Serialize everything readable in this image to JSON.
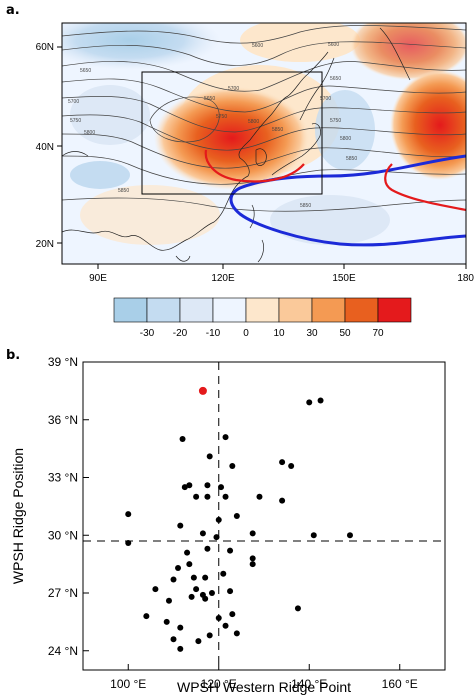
{
  "panel_a": {
    "label": "a.",
    "lat_ticks": [
      "60N",
      "40N",
      "20N"
    ],
    "lon_ticks": [
      "90E",
      "120E",
      "150E",
      "180"
    ],
    "contour_labels": [
      "5600",
      "5650",
      "5700",
      "5750",
      "5800",
      "5850",
      "5650",
      "5700",
      "5750",
      "5800",
      "5850",
      "5600",
      "5650",
      "5700",
      "5750",
      "5800",
      "5850",
      "5850"
    ],
    "colorbar": {
      "labels": [
        "-30",
        "-20",
        "-10",
        "0",
        "10",
        "30",
        "50",
        "70"
      ],
      "colors": [
        "#a9cfe8",
        "#c4dcf1",
        "#dde8f6",
        "#eef5ff",
        "#fde7cc",
        "#fac99a",
        "#f49a53",
        "#e8601f",
        "#e41a1c"
      ]
    },
    "colors": {
      "ridge_blue": "#1c2ad8",
      "ridge_red": "#e41a1c",
      "land_outline": "#222222"
    }
  },
  "chart_data": {
    "type": "scatter",
    "label": "b.",
    "xlabel": "WPSH Western Ridge Point",
    "ylabel": "WPSH Ridge Position",
    "xlim": [
      90,
      170
    ],
    "ylim": [
      23,
      39
    ],
    "x_tick_labels": [
      "100 °E",
      "120 °E",
      "140 °E",
      "160 °E"
    ],
    "x_ticks": [
      100,
      120,
      140,
      160
    ],
    "y_tick_labels": [
      "24 °N",
      "27 °N",
      "30 °N",
      "33 °N",
      "36 °N",
      "39 °N"
    ],
    "y_ticks": [
      24,
      27,
      30,
      33,
      36,
      39
    ],
    "reference_lines": {
      "x": 120,
      "y": 29.7
    },
    "highlight": {
      "x": 116.5,
      "y": 37.5,
      "color": "#e41a1c"
    },
    "point_color": "#000000",
    "points": [
      [
        112,
        35.0
      ],
      [
        121.5,
        35.1
      ],
      [
        118.0,
        34.1
      ],
      [
        123.0,
        33.6
      ],
      [
        113.5,
        32.6
      ],
      [
        112.5,
        32.5
      ],
      [
        117.5,
        32.6
      ],
      [
        120.5,
        32.5
      ],
      [
        115.0,
        32.0
      ],
      [
        117.5,
        32.0
      ],
      [
        121.5,
        32.0
      ],
      [
        129.0,
        32.0
      ],
      [
        134.0,
        33.8
      ],
      [
        136.0,
        33.6
      ],
      [
        134.0,
        31.8
      ],
      [
        140.0,
        36.9
      ],
      [
        142.5,
        37.0
      ],
      [
        100.0,
        31.1
      ],
      [
        124.0,
        31.0
      ],
      [
        120.0,
        30.8
      ],
      [
        111.5,
        30.5
      ],
      [
        116.5,
        30.1
      ],
      [
        127.5,
        30.1
      ],
      [
        141.0,
        30.0
      ],
      [
        149.0,
        30.0
      ],
      [
        100.0,
        29.6
      ],
      [
        119.5,
        29.9
      ],
      [
        113.0,
        29.1
      ],
      [
        117.5,
        29.3
      ],
      [
        122.5,
        29.2
      ],
      [
        127.5,
        28.8
      ],
      [
        127.5,
        28.5
      ],
      [
        111.0,
        28.3
      ],
      [
        113.5,
        28.5
      ],
      [
        121.0,
        28.0
      ],
      [
        110.0,
        27.7
      ],
      [
        114.5,
        27.8
      ],
      [
        117.0,
        27.8
      ],
      [
        115.0,
        27.2
      ],
      [
        118.5,
        27.0
      ],
      [
        122.5,
        27.1
      ],
      [
        106.0,
        27.2
      ],
      [
        109.0,
        26.6
      ],
      [
        116.5,
        26.9
      ],
      [
        114.0,
        26.8
      ],
      [
        117.0,
        26.7
      ],
      [
        104.0,
        25.8
      ],
      [
        120.0,
        25.7
      ],
      [
        123.0,
        25.9
      ],
      [
        137.5,
        26.2
      ],
      [
        108.5,
        25.5
      ],
      [
        111.5,
        25.2
      ],
      [
        121.5,
        25.3
      ],
      [
        124.0,
        24.9
      ],
      [
        110.0,
        24.6
      ],
      [
        115.5,
        24.5
      ],
      [
        111.5,
        24.1
      ],
      [
        118.0,
        24.8
      ]
    ]
  }
}
